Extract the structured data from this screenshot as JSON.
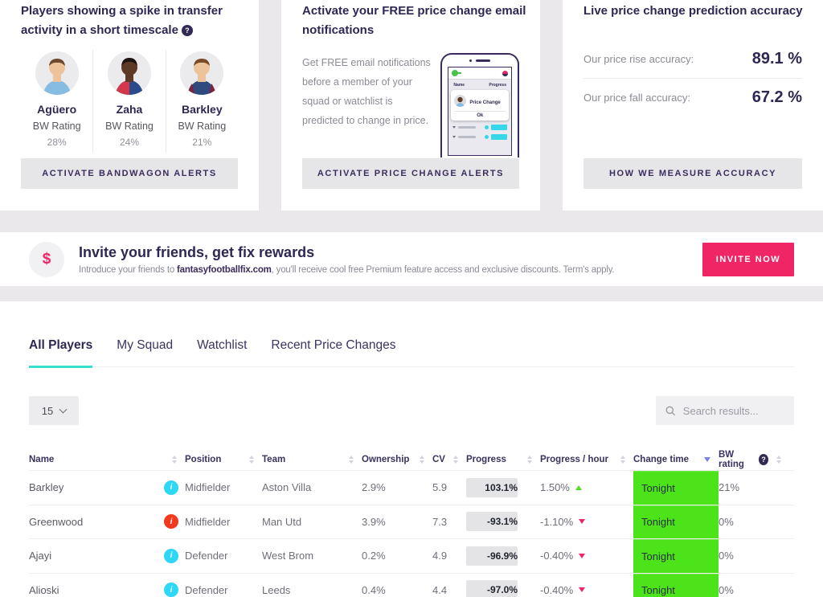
{
  "colors": {
    "accent_pink": "#f02565",
    "accent_cyan": "#35e0d1",
    "green": "#4ce31a",
    "orange": "#ec7140",
    "info_cyan": "#2ed7f5",
    "info_red": "#f1391d",
    "sort_active": "#7684ea",
    "title_navy": "#2f2753"
  },
  "cards": {
    "bandwagon": {
      "title": "Players showing a spike in transfer activity in a short timescale",
      "players": [
        {
          "name": "Agüero",
          "rating_label": "BW Rating",
          "rating": "28%"
        },
        {
          "name": "Zaha",
          "rating_label": "BW Rating",
          "rating": "24%"
        },
        {
          "name": "Barkley",
          "rating_label": "BW Rating",
          "rating": "21%"
        }
      ],
      "button": "ACTIVATE BANDWAGON ALERTS"
    },
    "price_alerts": {
      "title": "Activate your FREE price change email notifications",
      "body": "Get FREE email notifications before a member of your squad or watchlist is predicted to change in price.",
      "button": "ACTIVATE PRICE CHANGE ALERTS",
      "phone": {
        "col_name": "Name",
        "col_progress": "Progress",
        "popup_title": "Price Change",
        "ok_label": "Ok"
      }
    },
    "accuracy": {
      "title": "Live price change prediction accuracy",
      "rows": [
        {
          "label": "Our price rise accuracy:",
          "value": "89.1 %"
        },
        {
          "label": "Our price fall accuracy:",
          "value": "67.2 %"
        }
      ],
      "button": "HOW WE MEASURE ACCURACY"
    }
  },
  "invite": {
    "icon": "dollar-sign",
    "title": "Invite your friends, get fix rewards",
    "subtitle_pre": "Introduce your friends to ",
    "subtitle_link": "fantasyfootballfix.com",
    "subtitle_post": ", you'll receive cool free Premium feature access and exclusive discounts. Term's apply.",
    "button": "INVITE NOW"
  },
  "tabs": [
    {
      "label": "All Players",
      "active": true
    },
    {
      "label": "My Squad",
      "active": false
    },
    {
      "label": "Watchlist",
      "active": false
    },
    {
      "label": "Recent Price Changes",
      "active": false
    }
  ],
  "table": {
    "page_size": "15",
    "search_placeholder": "Search results...",
    "columns": {
      "name": "Name",
      "position": "Position",
      "team": "Team",
      "ownership": "Ownership",
      "cv": "CV",
      "progress": "Progress",
      "progress_hour": "Progress / hour",
      "change_time": "Change time",
      "bw_rating": "BW rating"
    },
    "sorted_by": "Change time",
    "rows": [
      {
        "name": "Barkley",
        "info_color": "cyan",
        "position": "Midfielder",
        "team": "Aston Villa",
        "ownership": "2.9%",
        "cv": "5.9",
        "progress": "103.1%",
        "progress_fill": 100,
        "progress_color": "green",
        "progress_hour": "1.50%",
        "hour_dir": "up",
        "change_time": "Tonight",
        "bw_rating": "21%"
      },
      {
        "name": "Greenwood",
        "info_color": "red",
        "position": "Midfielder",
        "team": "Man Utd",
        "ownership": "3.9%",
        "cv": "7.3",
        "progress": "-93.1%",
        "progress_fill": 93,
        "progress_color": "orange",
        "progress_hour": "-1.10%",
        "hour_dir": "down",
        "change_time": "Tonight",
        "bw_rating": "0%"
      },
      {
        "name": "Ajayi",
        "info_color": "cyan",
        "position": "Defender",
        "team": "West Brom",
        "ownership": "0.2%",
        "cv": "4.9",
        "progress": "-96.9%",
        "progress_fill": 97,
        "progress_color": "orange",
        "progress_hour": "-0.40%",
        "hour_dir": "down",
        "change_time": "Tonight",
        "bw_rating": "0%"
      },
      {
        "name": "Alioski",
        "info_color": "cyan",
        "position": "Defender",
        "team": "Leeds",
        "ownership": "0.4%",
        "cv": "4.4",
        "progress": "-97.0%",
        "progress_fill": 97,
        "progress_color": "orange",
        "progress_hour": "-0.40%",
        "hour_dir": "down",
        "change_time": "Tonight",
        "bw_rating": "0%"
      }
    ]
  }
}
